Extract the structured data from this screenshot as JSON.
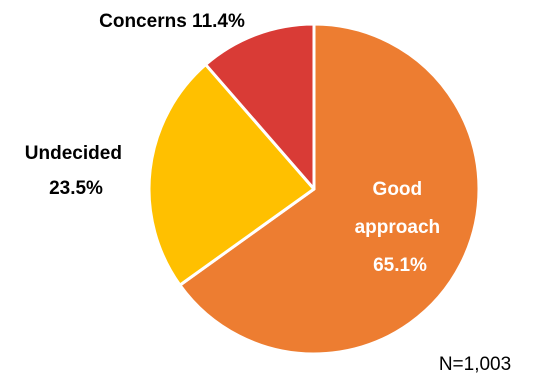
{
  "chart_data": {
    "type": "pie",
    "title": "",
    "slices": [
      {
        "label": "Good approach",
        "value": 65.1,
        "display": "65.1%",
        "color": "#ED7D31"
      },
      {
        "label": "Undecided",
        "value": 23.5,
        "display": "23.5%",
        "color": "#FFC000"
      },
      {
        "label": "Concerns",
        "value": 11.4,
        "display": "11.4%",
        "color": "#D93B36"
      }
    ],
    "label_colors": {
      "inside": "#ffffff",
      "outside": "#000000"
    },
    "start_angle_deg": 0,
    "direction": "clockwise",
    "legend": "none",
    "note": "N=1,003"
  }
}
